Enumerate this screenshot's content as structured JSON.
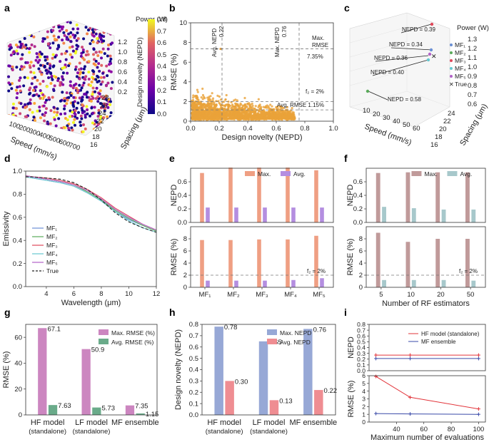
{
  "colors": {
    "orange": "#eaa23a",
    "salmon": "#ef9f83",
    "lavender": "#b48ee0",
    "mauve": "#c09a9a",
    "teal": "#a7c8cb",
    "pink": "#cc86c0",
    "green": "#6aab8a",
    "blue_bar": "#97a8d6",
    "red_bar": "#ef8d92",
    "mf1": "#6a8fd4",
    "mf2": "#5aaa5a",
    "mf3": "#e0485a",
    "mf4": "#66c8d0",
    "mf5": "#b262c8",
    "true": "#222222",
    "line_hf": "#e2343a",
    "line_mf": "#3a4aa8"
  },
  "panels": {
    "a": "a",
    "b": "b",
    "c": "c",
    "d": "d",
    "e": "e",
    "f": "f",
    "g": "g",
    "h": "h",
    "i": "i"
  },
  "a": {
    "power_label": "Power (W)",
    "power_ticks": [
      "1.2",
      "1.0",
      "0.8",
      "0.6",
      "0.4",
      "0.2"
    ],
    "speed_label": "Speed (mm/s)",
    "speed_ticks": [
      "100",
      "200",
      "300",
      "400",
      "500",
      "600",
      "700"
    ],
    "spacing_label": "Spacing (μm)",
    "spacing_ticks": [
      "28",
      "26",
      "24",
      "22",
      "20",
      "18",
      "16"
    ],
    "colorbar_label": "Design novelty (NEPD)",
    "colorbar_ticks": [
      "0.8",
      "0.7",
      "0.6",
      "0.5",
      "0.4",
      "0.3",
      "0.2",
      "0.1",
      "0.0"
    ]
  },
  "b": {
    "annot_avg_nepd": "Avg. NEPD",
    "annot_avg_nepd_val": "0.22",
    "annot_max_nepd": "Max. NEPD",
    "annot_max_nepd_val": "0.76",
    "annot_max_rmse_1": "Max.",
    "annot_max_rmse_2": "RMSE",
    "annot_max_rmse_val": "7.35%",
    "annot_f2": "f₂ = 2%",
    "annot_avg_rmse": "Avg. RMSE 1.15%"
  },
  "c": {
    "power_label": "Power (W)",
    "power_ticks": [
      "1.3",
      "1.2",
      "1.1",
      "1.0",
      "0.9",
      "0.8",
      "0.7",
      "0.6"
    ],
    "speed_label": "Speed (mm/s)",
    "speed_ticks": [
      "10",
      "20",
      "30",
      "40",
      "50",
      "60"
    ],
    "spacing_label": "Spacing (μm)",
    "spacing_ticks": [
      "24",
      "22",
      "20",
      "18",
      "16"
    ],
    "legend": [
      "MF₁",
      "MF₂",
      "MF₃",
      "MF₄",
      "MF₅",
      "True"
    ],
    "annotations": [
      "NEPD = 0.39",
      "NEPD = 0.34",
      "NEPD = 0.36",
      "NEPD = 0.40",
      "NEPD = 0.58"
    ]
  },
  "chart_data": [
    {
      "panel": "b",
      "type": "scatter",
      "title": "",
      "xlabel": "Design novelty (NEPD)",
      "ylabel": "RMSE (%)",
      "xlim": [
        0,
        1
      ],
      "ylim": [
        0,
        10
      ],
      "xticks": [
        "0.0",
        "0.2",
        "0.4",
        "0.6",
        "0.8",
        "1.0"
      ],
      "yticks": [
        "0",
        "2",
        "4",
        "6",
        "8",
        "10"
      ],
      "ref_lines": {
        "avg_nepd": 0.22,
        "max_nepd": 0.76,
        "max_rmse": 7.35,
        "f2": 2,
        "avg_rmse": 1.15
      },
      "point_count_estimate": 2500,
      "series": [
        {
          "name": "Design samples",
          "color": "#eaa23a"
        }
      ]
    },
    {
      "panel": "d",
      "type": "line",
      "xlabel": "Wavelength (μm)",
      "ylabel": "Emissivity",
      "xlim": [
        2.5,
        12
      ],
      "ylim": [
        0,
        1
      ],
      "xticks": [
        "4",
        "6",
        "8",
        "10",
        "12"
      ],
      "yticks": [
        "0.0",
        "0.2",
        "0.4",
        "0.6",
        "0.8",
        "1.0"
      ],
      "x": [
        2.5,
        3,
        4,
        5,
        6,
        7,
        8,
        9,
        10,
        11,
        12
      ],
      "series": [
        {
          "name": "MF₁",
          "values": [
            0.95,
            0.94,
            0.92,
            0.9,
            0.87,
            0.81,
            0.74,
            0.65,
            0.58,
            0.53,
            0.48
          ]
        },
        {
          "name": "MF₂",
          "values": [
            0.96,
            0.95,
            0.93,
            0.91,
            0.88,
            0.82,
            0.75,
            0.66,
            0.59,
            0.53,
            0.48
          ]
        },
        {
          "name": "MF₃",
          "values": [
            0.96,
            0.95,
            0.94,
            0.92,
            0.89,
            0.84,
            0.77,
            0.68,
            0.61,
            0.54,
            0.49
          ]
        },
        {
          "name": "MF₄",
          "values": [
            0.95,
            0.94,
            0.92,
            0.9,
            0.87,
            0.81,
            0.74,
            0.65,
            0.57,
            0.51,
            0.47
          ]
        },
        {
          "name": "MF₅",
          "values": [
            0.96,
            0.95,
            0.93,
            0.91,
            0.88,
            0.83,
            0.76,
            0.67,
            0.6,
            0.54,
            0.49
          ]
        },
        {
          "name": "True",
          "values": [
            0.95,
            0.95,
            0.94,
            0.93,
            0.9,
            0.84,
            0.75,
            0.64,
            0.56,
            0.51,
            0.47
          ]
        }
      ]
    },
    {
      "panel": "e",
      "type": "bar",
      "categories": [
        "MF₁",
        "MF₂",
        "MF₃",
        "MF₄",
        "MF₅"
      ],
      "legend": [
        "Max.",
        "Avg."
      ],
      "top": {
        "ylabel": "NEPD",
        "ylim": [
          0,
          0.8
        ],
        "yticks": [
          "0.0",
          "0.2",
          "0.4",
          "0.6"
        ],
        "series": [
          {
            "name": "Max.",
            "values": [
              0.73,
              0.81,
              0.81,
              0.81,
              0.77
            ]
          },
          {
            "name": "Avg.",
            "values": [
              0.22,
              0.22,
              0.22,
              0.22,
              0.22
            ]
          }
        ]
      },
      "bottom": {
        "ylabel": "RMSE (%)",
        "ylim": [
          0,
          10
        ],
        "yticks": [
          "0",
          "2",
          "4",
          "6",
          "8"
        ],
        "series": [
          {
            "name": "Max.",
            "values": [
              7.8,
              7.8,
              7.9,
              7.9,
              8.5
            ]
          },
          {
            "name": "Avg.",
            "values": [
              1.1,
              1.1,
              1.1,
              1.2,
              1.5
            ]
          }
        ],
        "ref_line": 2,
        "ref_label": "f₂ = 2%"
      }
    },
    {
      "panel": "f",
      "type": "bar",
      "xlabel": "Number of RF estimators",
      "categories": [
        "5",
        "10",
        "20",
        "50"
      ],
      "legend": [
        "Max.",
        "Avg."
      ],
      "top": {
        "ylabel": "NEPD",
        "ylim": [
          0,
          0.8
        ],
        "yticks": [
          "0.0",
          "0.2",
          "0.4",
          "0.6"
        ],
        "series": [
          {
            "name": "Max.",
            "values": [
              0.73,
              0.74,
              0.74,
              0.74
            ]
          },
          {
            "name": "Avg.",
            "values": [
              0.23,
              0.21,
              0.19,
              0.19
            ]
          }
        ]
      },
      "bottom": {
        "ylabel": "RMSE (%)",
        "ylim": [
          0,
          10
        ],
        "yticks": [
          "0",
          "2",
          "4",
          "6",
          "8"
        ],
        "series": [
          {
            "name": "Max.",
            "values": [
              9.0,
              7.5,
              8.0,
              8.0
            ]
          },
          {
            "name": "Avg.",
            "values": [
              1.2,
              1.2,
              1.2,
              1.1
            ]
          }
        ],
        "ref_line": 2,
        "ref_label": "f₂ = 2%"
      }
    },
    {
      "panel": "g",
      "type": "bar",
      "ylabel": "RMSE (%)",
      "ylim": [
        0,
        70
      ],
      "yticks": [
        "0",
        "20",
        "40",
        "60"
      ],
      "categories": [
        "HF model\n(standalone)",
        "LF model\n(standalone)",
        "MF ensemble"
      ],
      "series": [
        {
          "name": "Max. RMSE (%)",
          "values": [
            67.1,
            50.9,
            7.35
          ]
        },
        {
          "name": "Avg. RMSE (%)",
          "values": [
            7.63,
            5.73,
            1.15
          ]
        }
      ],
      "data_labels": [
        [
          "67.1",
          "50.9",
          "7.35"
        ],
        [
          "7.63",
          "5.73",
          "1.15"
        ]
      ]
    },
    {
      "panel": "h",
      "type": "bar",
      "ylabel": "Design novelty (NEPD)",
      "ylim": [
        0,
        0.8
      ],
      "yticks": [
        "0.0",
        "0.1",
        "0.2",
        "0.3",
        "0.4",
        "0.5",
        "0.6",
        "0.7",
        "0.8"
      ],
      "categories": [
        "HF model\n(standalone)",
        "LF model\n(standalone)",
        "MF ensemble"
      ],
      "series": [
        {
          "name": "Max. NEPD",
          "values": [
            0.78,
            0.65,
            0.76
          ]
        },
        {
          "name": "Avg. NEPD",
          "values": [
            0.3,
            0.13,
            0.22
          ]
        }
      ],
      "data_labels": [
        [
          "0.78",
          "0.65",
          "0.76"
        ],
        [
          "0.30",
          "0.13",
          "0.22"
        ]
      ]
    },
    {
      "panel": "i",
      "type": "line",
      "xlabel": "Maximum number of evaluations",
      "x": [
        25,
        50,
        100
      ],
      "xticks": [
        "40",
        "60",
        "80",
        "100"
      ],
      "legend": [
        "HF model (standalone)",
        "MF ensemble"
      ],
      "top": {
        "ylabel": "NEPD",
        "ylim": [
          0,
          0.8
        ],
        "yticks": [
          "0.0",
          "0.1",
          "0.2",
          "0.3",
          "0.4",
          "0.5",
          "0.6",
          "0.7",
          "0.8"
        ],
        "series": [
          {
            "name": "HF model (standalone)",
            "values": [
              0.27,
              0.27,
              0.27
            ]
          },
          {
            "name": "MF ensemble",
            "values": [
              0.21,
              0.21,
              0.21
            ]
          }
        ]
      },
      "bottom": {
        "ylabel": "RMSE (%)",
        "ylim": [
          0,
          6
        ],
        "yticks": [
          "0",
          "1",
          "2",
          "3",
          "4",
          "5",
          "6"
        ],
        "series": [
          {
            "name": "HF model (standalone)",
            "values": [
              5.9,
              3.2,
              1.7
            ]
          },
          {
            "name": "MF ensemble",
            "values": [
              1.1,
              1.05,
              1.0
            ]
          }
        ]
      }
    }
  ]
}
